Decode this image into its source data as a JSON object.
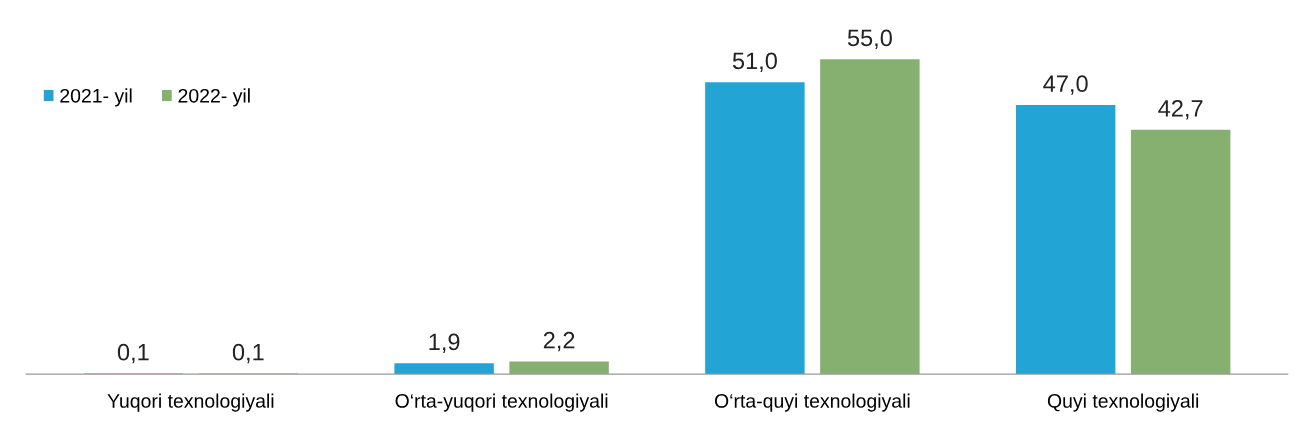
{
  "chart_data": {
    "type": "bar",
    "categories": [
      "Yuqori texnologiyali",
      "O‘rta-yuqori texnologiyali",
      "O‘rta-quyi texnologiyali",
      "Quyi texnologiyali"
    ],
    "series": [
      {
        "name": "2021- yil",
        "color": "#22a4d4",
        "values": [
          0.1,
          1.9,
          51.0,
          47.0
        ],
        "value_labels": [
          "0,1",
          "1,9",
          "51,0",
          "47,0"
        ]
      },
      {
        "name": "2022- yil",
        "color": "#86b070",
        "values": [
          0.1,
          2.2,
          55.0,
          42.7
        ],
        "value_labels": [
          "0,1",
          "2,2",
          "55,0",
          "42,7"
        ]
      }
    ],
    "legend": "top left",
    "grid": false,
    "tick_labels": "x"
  }
}
